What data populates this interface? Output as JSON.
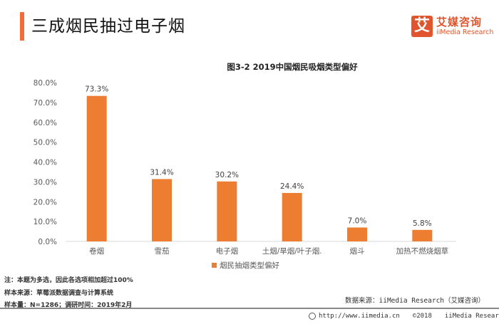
{
  "header": {
    "title": "三成烟民抽过电子烟",
    "logo_mark": "艾",
    "logo_cn": "艾媒咨询",
    "logo_en": "iiMedia Research"
  },
  "chart_data": {
    "type": "bar",
    "title": "图3-2 2019中国烟民吸烟类型偏好",
    "categories": [
      "卷烟",
      "雪茄",
      "电子烟",
      "土烟/旱烟/叶子烟.",
      "烟斗",
      "加热不燃烧烟草"
    ],
    "series": [
      {
        "name": "烟民抽烟类型偏好",
        "values": [
          73.3,
          31.4,
          30.2,
          24.4,
          7.0,
          5.8
        ],
        "color": "#ed7d31"
      }
    ],
    "data_labels": [
      "73.3%",
      "31.4%",
      "30.2%",
      "24.4%",
      "7.0%",
      "5.8%"
    ],
    "xlabel": "",
    "ylabel": "",
    "ylim": [
      0,
      80
    ],
    "yticks": [
      0,
      10,
      20,
      30,
      40,
      50,
      60,
      70,
      80
    ],
    "ytick_labels": [
      "0.0%",
      "10.0%",
      "20.0%",
      "30.0%",
      "40.0%",
      "50.0%",
      "60.0%",
      "70.0%",
      "80.0%"
    ],
    "grid": false,
    "legend": "bottom-center"
  },
  "notes": {
    "line1": "注：本题为多选，因此各选项相加超过100%",
    "line2": "样本来源：草莓派数据调查与计算系统",
    "line3": "样本量：N=1286；调研时间：2019年2月",
    "source": "数据来源：iiMedia Research（艾媒咨询）"
  },
  "footer": {
    "url": "http://www.iimedia.cn",
    "copyright": "©2018",
    "company": "iiMedia Research  Inc"
  }
}
